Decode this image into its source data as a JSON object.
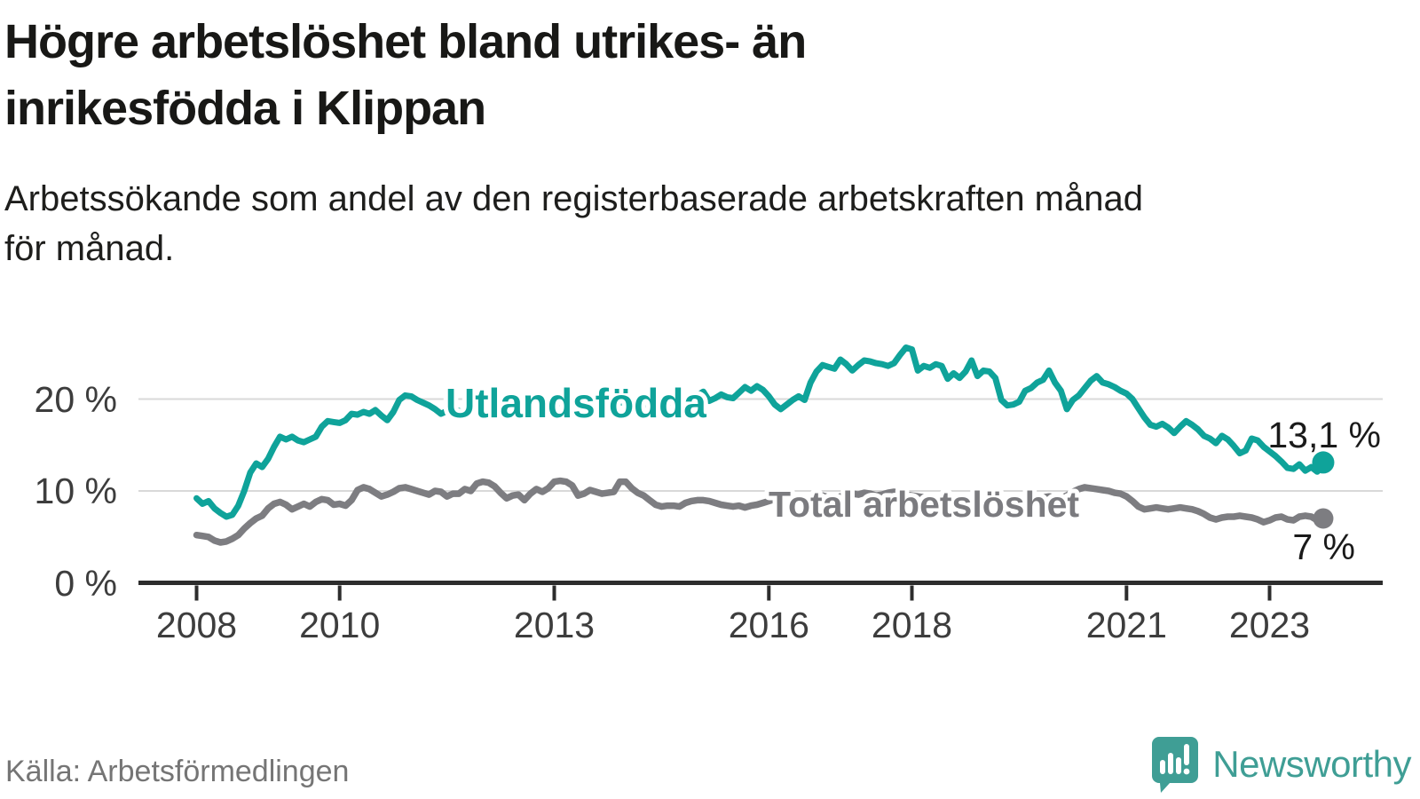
{
  "header": {
    "title_lines": [
      "Högre arbetslöshet bland utrikes- än",
      "inrikesfödda i Klippan"
    ],
    "subtitle_lines": [
      "Arbetssökande som andel av den registerbaserade arbetskraften månad",
      "för månad."
    ]
  },
  "chart_data": {
    "type": "line",
    "unit": "%",
    "frequency": "monthly",
    "start": "2008-01",
    "end": "2023-10",
    "grid": "horizontal",
    "legend_position": "inline-labels",
    "ylim": [
      0,
      27
    ],
    "x_tick_years": [
      2008,
      2010,
      2013,
      2016,
      2018,
      2021,
      2023
    ],
    "y_tick_labels": [
      "20 %",
      "10 %",
      "0 %"
    ],
    "y_tick_values": [
      20,
      10,
      0
    ],
    "series": [
      {
        "name": "Utlandsfödda",
        "color": "#0fa39a",
        "end_label": "13,1 %",
        "end_value": 13.1,
        "values": [
          9.2,
          8.6,
          8.9,
          8.1,
          7.6,
          7.2,
          7.4,
          8.4,
          10.0,
          12.0,
          13.0,
          12.6,
          13.5,
          14.8,
          15.9,
          15.6,
          15.9,
          15.5,
          15.3,
          15.6,
          15.9,
          17.0,
          17.6,
          17.5,
          17.4,
          17.7,
          18.4,
          18.3,
          18.6,
          18.4,
          18.8,
          18.2,
          17.7,
          18.6,
          19.9,
          20.4,
          20.3,
          19.9,
          19.6,
          19.3,
          18.9,
          18.4,
          18.7,
          19.0,
          18.7,
          18.5,
          18.8,
          19.1,
          19.3,
          19.0,
          18.7,
          19.0,
          19.3,
          19.1,
          18.8,
          19.1,
          19.4,
          19.2,
          18.9,
          19.1,
          19.3,
          19.6,
          19.4,
          19.1,
          18.9,
          19.2,
          19.5,
          19.3,
          19.0,
          19.2,
          19.5,
          19.7,
          19.5,
          19.2,
          19.0,
          19.3,
          19.6,
          19.4,
          19.2,
          19.5,
          19.8,
          20.0,
          20.2,
          20.3,
          20.4,
          20.8,
          19.8,
          20.1,
          20.5,
          20.2,
          20.1,
          20.7,
          21.3,
          20.9,
          21.4,
          21.0,
          20.3,
          19.4,
          18.9,
          19.4,
          19.9,
          20.3,
          19.9,
          21.8,
          23.0,
          23.7,
          23.5,
          23.3,
          24.3,
          23.8,
          23.1,
          23.7,
          24.2,
          24.1,
          23.9,
          23.8,
          23.6,
          23.9,
          24.8,
          25.6,
          25.4,
          23.1,
          23.6,
          23.4,
          23.8,
          23.6,
          22.2,
          22.8,
          22.3,
          23.0,
          24.2,
          22.5,
          23.1,
          23.0,
          22.3,
          19.9,
          19.3,
          19.4,
          19.7,
          20.9,
          21.2,
          21.8,
          22.1,
          23.1,
          21.8,
          20.9,
          18.9,
          19.9,
          20.4,
          21.2,
          22.0,
          22.5,
          21.8,
          21.6,
          21.3,
          20.9,
          20.6,
          20.0,
          19.0,
          18.0,
          17.2,
          17.0,
          17.3,
          16.9,
          16.3,
          17.0,
          17.6,
          17.2,
          16.7,
          16.0,
          15.7,
          15.2,
          16.0,
          15.6,
          14.9,
          14.1,
          14.4,
          15.7,
          15.5,
          14.8,
          14.3,
          13.8,
          13.2,
          12.5,
          12.4,
          12.9,
          12.2,
          12.6,
          12.1,
          13.1
        ]
      },
      {
        "name": "Total arbetslöshet",
        "color": "#7d7d81",
        "end_label": "7 %",
        "end_value": 7.0,
        "values": [
          5.2,
          5.1,
          5.0,
          4.6,
          4.4,
          4.5,
          4.8,
          5.2,
          5.9,
          6.5,
          7.0,
          7.3,
          8.1,
          8.6,
          8.8,
          8.5,
          8.0,
          8.3,
          8.6,
          8.3,
          8.8,
          9.1,
          9.0,
          8.5,
          8.6,
          8.4,
          9.0,
          10.1,
          10.4,
          10.2,
          9.8,
          9.4,
          9.6,
          9.9,
          10.3,
          10.4,
          10.2,
          10.0,
          9.8,
          9.6,
          10.0,
          9.9,
          9.4,
          9.7,
          9.7,
          10.2,
          10.0,
          10.8,
          11.0,
          10.9,
          10.5,
          9.8,
          9.2,
          9.5,
          9.6,
          9.0,
          9.7,
          10.2,
          9.9,
          10.3,
          11.0,
          11.1,
          11.0,
          10.6,
          9.5,
          9.7,
          10.1,
          9.9,
          9.7,
          9.8,
          9.9,
          11.0,
          11.0,
          10.3,
          9.8,
          9.5,
          9.0,
          8.5,
          8.3,
          8.4,
          8.4,
          8.3,
          8.7,
          8.9,
          9.0,
          9.0,
          8.9,
          8.7,
          8.5,
          8.4,
          8.3,
          8.4,
          8.2,
          8.4,
          8.5,
          8.7,
          8.9,
          9.1,
          9.2,
          9.1,
          9.3,
          9.2,
          9.0,
          9.2,
          9.4,
          9.5,
          9.3,
          9.2,
          9.4,
          9.5,
          9.7,
          9.6,
          9.8,
          9.7,
          9.5,
          9.6,
          9.8,
          9.9,
          9.7,
          9.6,
          9.5,
          9.4,
          9.3,
          9.2,
          9.1,
          9.0,
          8.9,
          9.0,
          9.1,
          9.2,
          9.1,
          9.0,
          9.1,
          9.0,
          8.9,
          8.8,
          8.7,
          8.8,
          8.9,
          9.0,
          9.1,
          9.2,
          9.3,
          9.4,
          9.3,
          9.2,
          9.5,
          9.9,
          10.2,
          10.4,
          10.3,
          10.2,
          10.1,
          10.0,
          9.8,
          9.7,
          9.4,
          8.9,
          8.3,
          8.0,
          8.1,
          8.2,
          8.1,
          8.0,
          8.1,
          8.2,
          8.1,
          8.0,
          7.8,
          7.5,
          7.1,
          6.9,
          7.1,
          7.2,
          7.2,
          7.3,
          7.2,
          7.1,
          6.9,
          6.6,
          6.8,
          7.1,
          7.2,
          6.9,
          6.8,
          7.2,
          7.3,
          7.2,
          6.8,
          7.0
        ]
      }
    ]
  },
  "footer": {
    "source": "Källa: Arbetsförmedlingen",
    "brand": "Newsworthy"
  },
  "colors": {
    "accent_teal": "#0fa39a",
    "series_gray": "#7d7d81",
    "text_dark": "#1a1a1a",
    "axis_text": "#3d3d3d",
    "grid_line": "#d9d9d9",
    "axis_line": "#2d2d2d",
    "source_text": "#757575",
    "brand_teal": "#3f9e95"
  }
}
